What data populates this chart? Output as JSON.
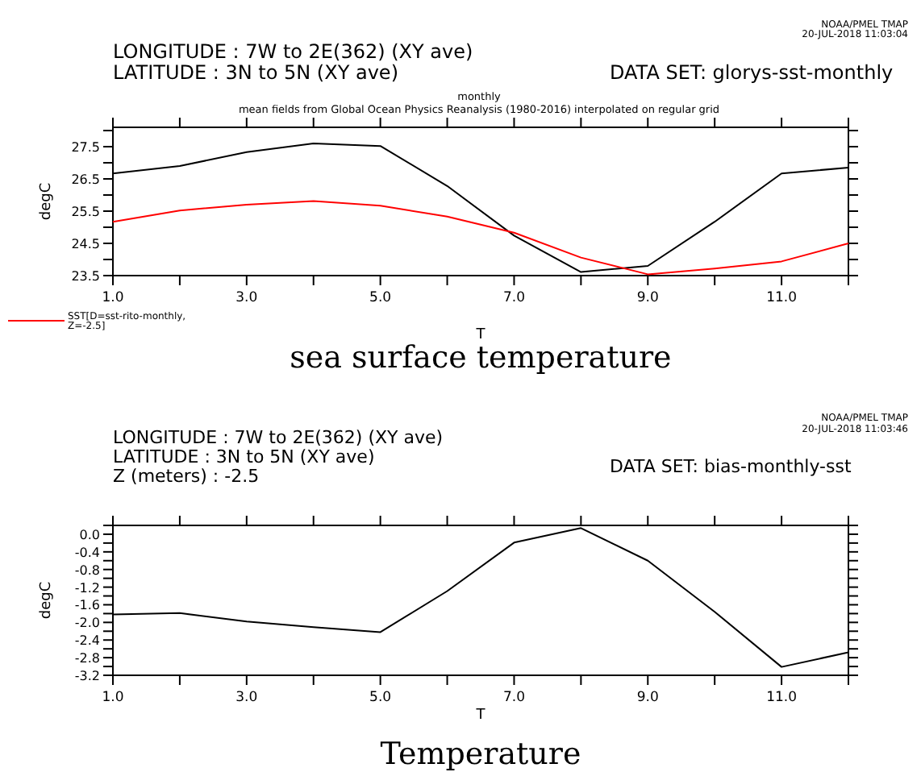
{
  "chart_data": [
    {
      "type": "line",
      "title": "sea surface temperature",
      "subtitle": "monthly",
      "xlabel": "T",
      "ylabel": "degC",
      "legend": "bottom left",
      "annotations": [
        "LONGITUDE : 7W to 2E(362) (XY ave)",
        "LATITUDE : 3N to 5N (XY ave)",
        "DATA SET: glorys-sst-monthly",
        "NOAA/PMEL TMAP",
        "20-JUL-2018 11:03:04",
        "mean fields from Global Ocean Physics Reanalysis (1980-2016) interpolated on regular grid"
      ],
      "x": [
        1,
        2,
        3,
        4,
        5,
        6,
        7,
        8,
        9,
        10,
        11,
        12
      ],
      "xlim": [
        1,
        12
      ],
      "xticks": [
        {
          "value": 1,
          "label": "1.0"
        },
        {
          "value": 2,
          "label": null
        },
        {
          "value": 3,
          "label": "3.0"
        },
        {
          "value": 4,
          "label": null
        },
        {
          "value": 5,
          "label": "5.0"
        },
        {
          "value": 6,
          "label": null
        },
        {
          "value": 7,
          "label": "7.0"
        },
        {
          "value": 8,
          "label": null
        },
        {
          "value": 9,
          "label": "9.0"
        },
        {
          "value": 10,
          "label": null
        },
        {
          "value": 11,
          "label": "11.0"
        },
        {
          "value": 12,
          "label": null
        }
      ],
      "ylim": [
        23.5,
        28.1
      ],
      "yticks": [
        23.5,
        {
          "value": 24,
          "label": null
        },
        24.5,
        {
          "value": 25,
          "label": null
        },
        25.5,
        {
          "value": 26,
          "label": null
        },
        26.5,
        {
          "value": 27,
          "label": null
        },
        27.5,
        {
          "value": 28,
          "label": null
        }
      ],
      "series": [
        {
          "color": "#000000",
          "values": [
            26.67,
            26.9,
            27.33,
            27.6,
            27.52,
            26.28,
            24.74,
            23.61,
            23.8,
            25.17,
            26.67,
            26.85
          ]
        },
        {
          "name": "SST[D=sst-rito-monthly, Z=-2.5]",
          "color": "#ff0000",
          "values": [
            25.17,
            25.52,
            25.7,
            25.81,
            25.67,
            25.33,
            24.83,
            24.06,
            23.54,
            23.72,
            23.94,
            24.5
          ]
        }
      ]
    },
    {
      "type": "line",
      "title": "Temperature",
      "xlabel": "T",
      "ylabel": "degC",
      "annotations": [
        "LONGITUDE : 7W to 2E(362) (XY ave)",
        "LATITUDE : 3N to 5N (XY ave)",
        "Z (meters) : -2.5",
        "DATA SET: bias-monthly-sst",
        "NOAA/PMEL TMAP",
        "20-JUL-2018 11:03:46"
      ],
      "x": [
        1,
        2,
        3,
        4,
        5,
        6,
        7,
        8,
        9,
        10,
        11,
        12
      ],
      "xlim": [
        1,
        12
      ],
      "xticks": [
        {
          "value": 1,
          "label": "1.0"
        },
        {
          "value": 2,
          "label": null
        },
        {
          "value": 3,
          "label": "3.0"
        },
        {
          "value": 4,
          "label": null
        },
        {
          "value": 5,
          "label": "5.0"
        },
        {
          "value": 6,
          "label": null
        },
        {
          "value": 7,
          "label": "7.0"
        },
        {
          "value": 8,
          "label": null
        },
        {
          "value": 9,
          "label": "9.0"
        },
        {
          "value": 10,
          "label": null
        },
        {
          "value": 11,
          "label": "11.0"
        },
        {
          "value": 12,
          "label": null
        }
      ],
      "ylim": [
        -3.2,
        0.2
      ],
      "yticks": [
        {
          "value": -3.2,
          "label": "-3.2"
        },
        {
          "value": -3,
          "label": null
        },
        {
          "value": -2.8,
          "label": "-2.8"
        },
        {
          "value": -2.6,
          "label": null
        },
        {
          "value": -2.4,
          "label": "-2.4"
        },
        {
          "value": -2.2,
          "label": null
        },
        {
          "value": -2,
          "label": "-2.0"
        },
        {
          "value": -1.8,
          "label": null
        },
        {
          "value": -1.6,
          "label": "-1.6"
        },
        {
          "value": -1.4,
          "label": null
        },
        {
          "value": -1.2,
          "label": "-1.2"
        },
        {
          "value": -1,
          "label": null
        },
        {
          "value": -0.8,
          "label": "-0.8"
        },
        {
          "value": -0.6,
          "label": null
        },
        {
          "value": -0.4,
          "label": "-0.4"
        },
        {
          "value": -0.2,
          "label": null
        },
        {
          "value": 0,
          "label": "0.0"
        },
        {
          "value": 0.2,
          "label": null
        }
      ],
      "series": [
        {
          "color": "#000000",
          "values": [
            -1.82,
            -1.79,
            -1.98,
            -2.11,
            -2.22,
            -1.29,
            -0.19,
            0.14,
            -0.6,
            -1.76,
            -3.01,
            -2.68
          ]
        }
      ]
    }
  ]
}
